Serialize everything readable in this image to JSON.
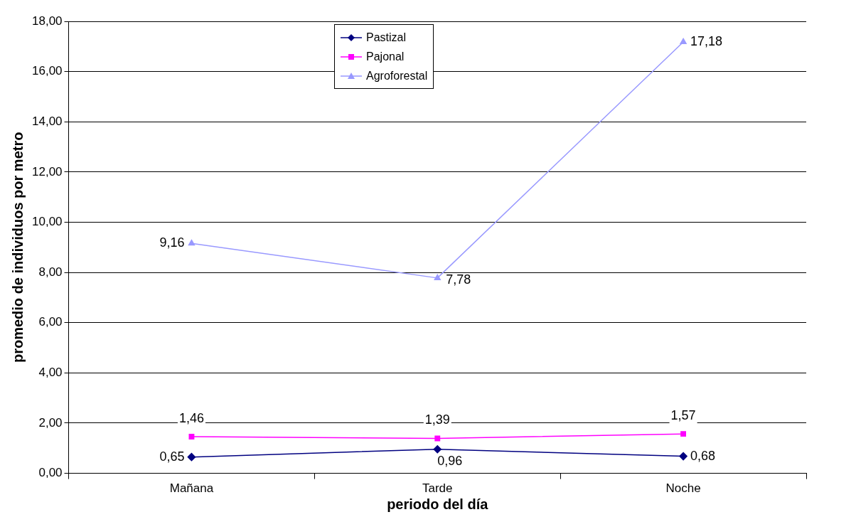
{
  "chart_data": {
    "type": "line",
    "xlabel": "periodo del día",
    "ylabel": "promedio de individuos por metro",
    "categories": [
      "Mañana",
      "Tarde",
      "Noche"
    ],
    "series": [
      {
        "name": "Pastizal",
        "color": "#000080",
        "marker": "diamond",
        "values": [
          0.65,
          0.96,
          0.68
        ],
        "value_labels": [
          "0,65",
          "0,96",
          "0,68"
        ]
      },
      {
        "name": "Pajonal",
        "color": "#ff00ff",
        "marker": "square",
        "values": [
          1.46,
          1.39,
          1.57
        ],
        "value_labels": [
          "1,46",
          "1,39",
          "1,57"
        ]
      },
      {
        "name": "Agroforestal",
        "color": "#9999ff",
        "marker": "triangle",
        "values": [
          9.16,
          7.78,
          17.18
        ],
        "value_labels": [
          "9,16",
          "7,78",
          "17,18"
        ]
      }
    ],
    "ylim": [
      0,
      18
    ],
    "yticks": [
      {
        "value": 0,
        "label": "0,00"
      },
      {
        "value": 2,
        "label": "2,00"
      },
      {
        "value": 4,
        "label": "4,00"
      },
      {
        "value": 6,
        "label": "6,00"
      },
      {
        "value": 8,
        "label": "8,00"
      },
      {
        "value": 10,
        "label": "10,00"
      },
      {
        "value": 12,
        "label": "12,00"
      },
      {
        "value": 14,
        "label": "14,00"
      },
      {
        "value": 16,
        "label": "16,00"
      },
      {
        "value": 18,
        "label": "18,00"
      }
    ],
    "grid": "y",
    "legend": "top",
    "line_style": "solid"
  }
}
